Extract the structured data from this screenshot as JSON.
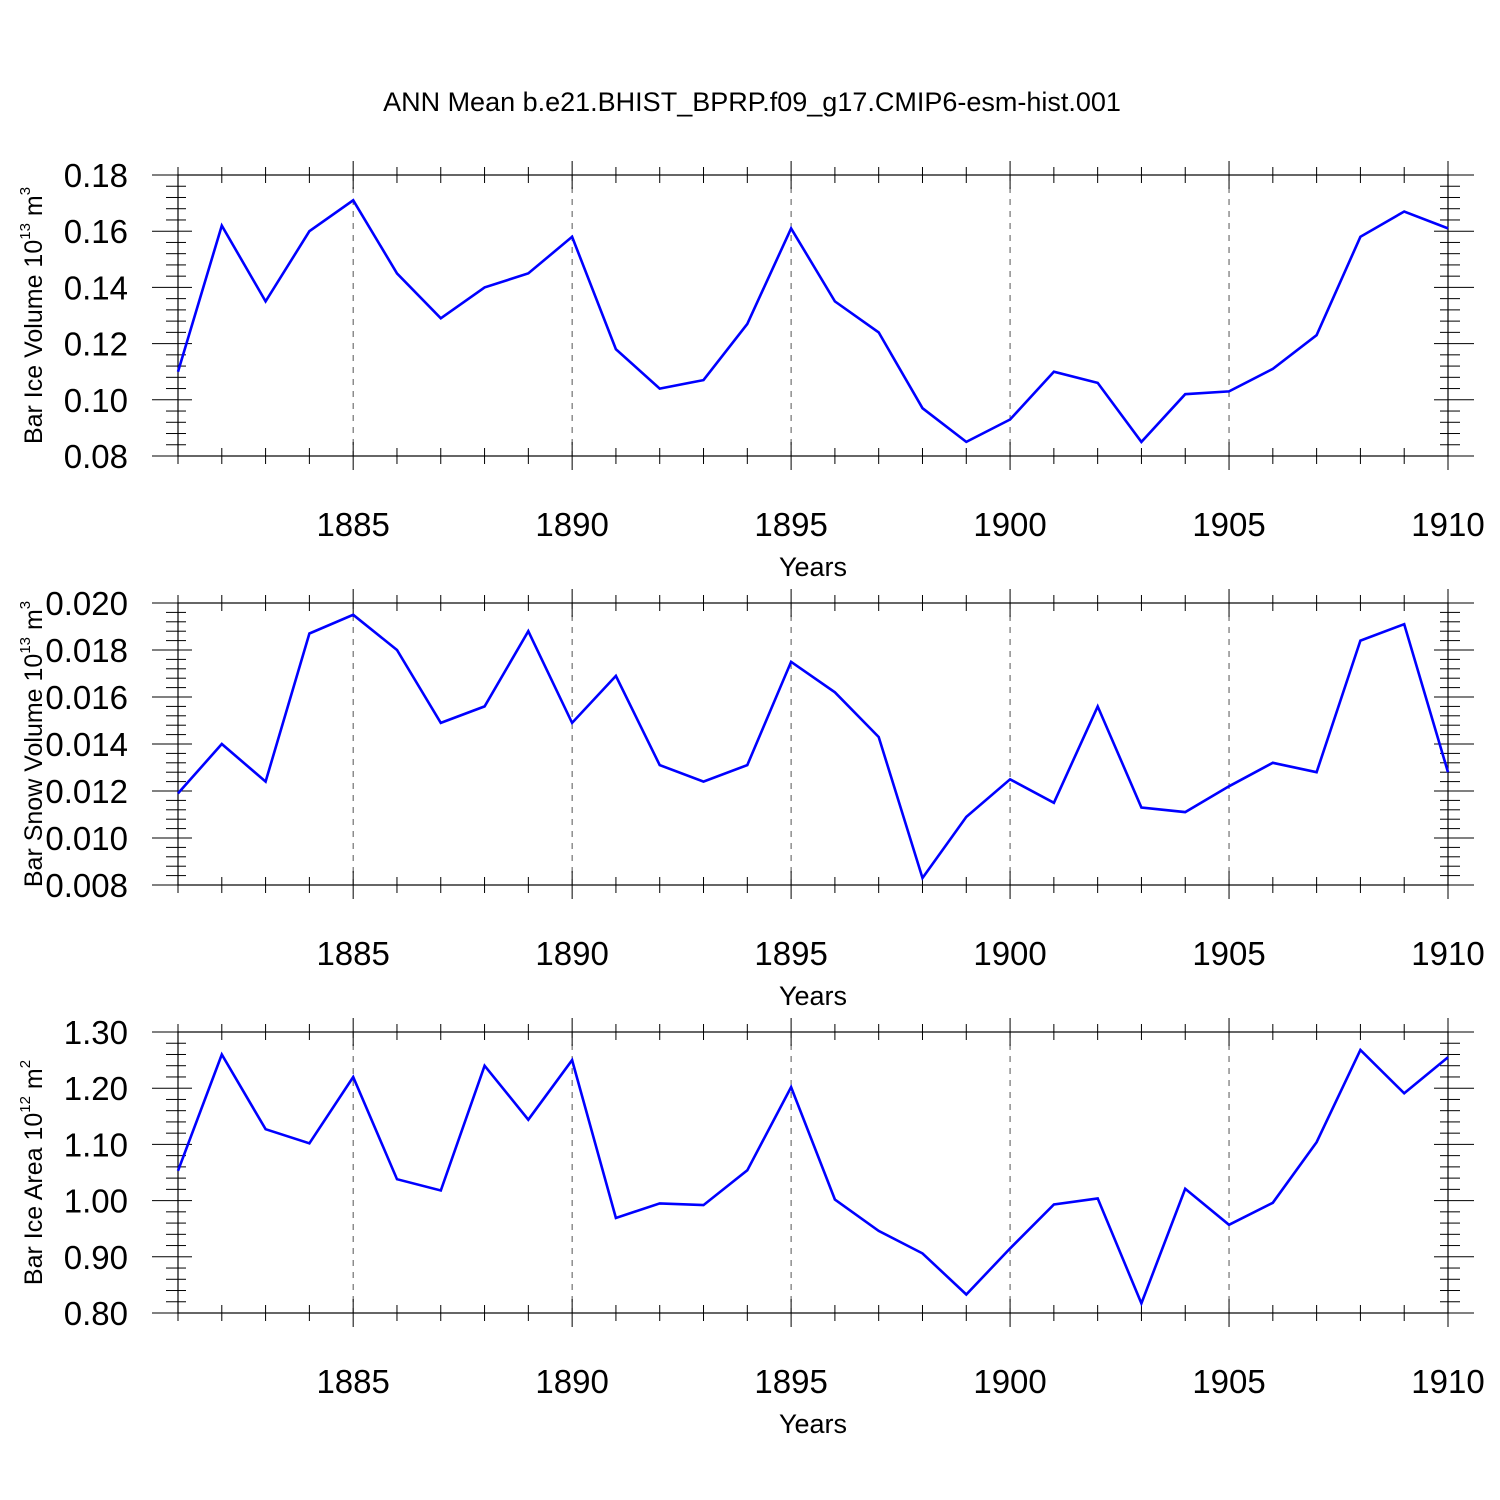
{
  "figure": {
    "title": "ANN Mean b.e21.BHIST_BPRP.f09_g17.CMIP6-esm-hist.001",
    "line_color": "#0000ff"
  },
  "chart_data": [
    {
      "type": "line",
      "ylabel": "Bar Ice Volume 10",
      "ylabel_exp": "13",
      "ylabel_unit": " m",
      "ylabel_unit_exp": "3",
      "xlabel": "Years",
      "xlim": [
        1881,
        1910
      ],
      "ylim": [
        0.08,
        0.18
      ],
      "yticks": [
        0.08,
        0.1,
        0.12,
        0.14,
        0.16,
        0.18
      ],
      "ytick_labels": [
        "0.08",
        "0.10",
        "0.12",
        "0.14",
        "0.16",
        "0.18"
      ],
      "xticks": [
        1885,
        1890,
        1895,
        1900,
        1905,
        1910
      ],
      "xtick_labels": [
        "1885",
        "1890",
        "1895",
        "1900",
        "1905",
        "1910"
      ],
      "x": [
        1881,
        1882,
        1883,
        1884,
        1885,
        1886,
        1887,
        1888,
        1889,
        1890,
        1891,
        1892,
        1893,
        1894,
        1895,
        1896,
        1897,
        1898,
        1899,
        1900,
        1901,
        1902,
        1903,
        1904,
        1905,
        1906,
        1907,
        1908,
        1909,
        1910
      ],
      "series": [
        {
          "name": "Bar Ice Volume",
          "values": [
            0.11,
            0.162,
            0.135,
            0.16,
            0.171,
            0.145,
            0.129,
            0.14,
            0.145,
            0.158,
            0.118,
            0.104,
            0.107,
            0.127,
            0.161,
            0.135,
            0.124,
            0.097,
            0.085,
            0.093,
            0.11,
            0.106,
            0.085,
            0.102,
            0.103,
            0.111,
            0.123,
            0.158,
            0.167,
            0.161
          ]
        }
      ]
    },
    {
      "type": "line",
      "ylabel": "Bar Snow Volume 10",
      "ylabel_exp": "13",
      "ylabel_unit": " m",
      "ylabel_unit_exp": "3",
      "xlabel": "Years",
      "xlim": [
        1881,
        1910
      ],
      "ylim": [
        0.008,
        0.02
      ],
      "yticks": [
        0.008,
        0.01,
        0.012,
        0.014,
        0.016,
        0.018,
        0.02
      ],
      "ytick_labels": [
        "0.008",
        "0.010",
        "0.012",
        "0.014",
        "0.016",
        "0.018",
        "0.020"
      ],
      "xticks": [
        1885,
        1890,
        1895,
        1900,
        1905,
        1910
      ],
      "xtick_labels": [
        "1885",
        "1890",
        "1895",
        "1900",
        "1905",
        "1910"
      ],
      "x": [
        1881,
        1882,
        1883,
        1884,
        1885,
        1886,
        1887,
        1888,
        1889,
        1890,
        1891,
        1892,
        1893,
        1894,
        1895,
        1896,
        1897,
        1898,
        1899,
        1900,
        1901,
        1902,
        1903,
        1904,
        1905,
        1906,
        1907,
        1908,
        1909,
        1910
      ],
      "series": [
        {
          "name": "Bar Snow Volume",
          "values": [
            0.0119,
            0.014,
            0.0124,
            0.0187,
            0.0195,
            0.018,
            0.0149,
            0.0156,
            0.0188,
            0.0149,
            0.0169,
            0.0131,
            0.0124,
            0.0131,
            0.0175,
            0.0162,
            0.0143,
            0.0083,
            0.0109,
            0.0125,
            0.0115,
            0.0156,
            0.0113,
            0.0111,
            0.0122,
            0.0132,
            0.0128,
            0.0184,
            0.0191,
            0.0128
          ]
        }
      ]
    },
    {
      "type": "line",
      "ylabel": "Bar Ice Area 10",
      "ylabel_exp": "12",
      "ylabel_unit": " m",
      "ylabel_unit_exp": "2",
      "xlabel": "Years",
      "xlim": [
        1881,
        1910
      ],
      "ylim": [
        0.8,
        1.3
      ],
      "yticks": [
        0.8,
        0.9,
        1.0,
        1.1,
        1.2,
        1.3
      ],
      "ytick_labels": [
        "0.80",
        "0.90",
        "1.00",
        "1.10",
        "1.20",
        "1.30"
      ],
      "xticks": [
        1885,
        1890,
        1895,
        1900,
        1905,
        1910
      ],
      "xtick_labels": [
        "1885",
        "1890",
        "1895",
        "1900",
        "1905",
        "1910"
      ],
      "x": [
        1881,
        1882,
        1883,
        1884,
        1885,
        1886,
        1887,
        1888,
        1889,
        1890,
        1891,
        1892,
        1893,
        1894,
        1895,
        1896,
        1897,
        1898,
        1899,
        1900,
        1901,
        1902,
        1903,
        1904,
        1905,
        1906,
        1907,
        1908,
        1909,
        1910
      ],
      "series": [
        {
          "name": "Bar Ice Area",
          "values": [
            1.053,
            1.26,
            1.127,
            1.102,
            1.22,
            1.038,
            1.018,
            1.24,
            1.144,
            1.25,
            0.969,
            0.995,
            0.992,
            1.054,
            1.202,
            1.002,
            0.946,
            0.906,
            0.833,
            0.915,
            0.993,
            1.004,
            0.817,
            1.021,
            0.957,
            0.996,
            1.104,
            1.268,
            1.191,
            1.255
          ]
        }
      ]
    }
  ]
}
